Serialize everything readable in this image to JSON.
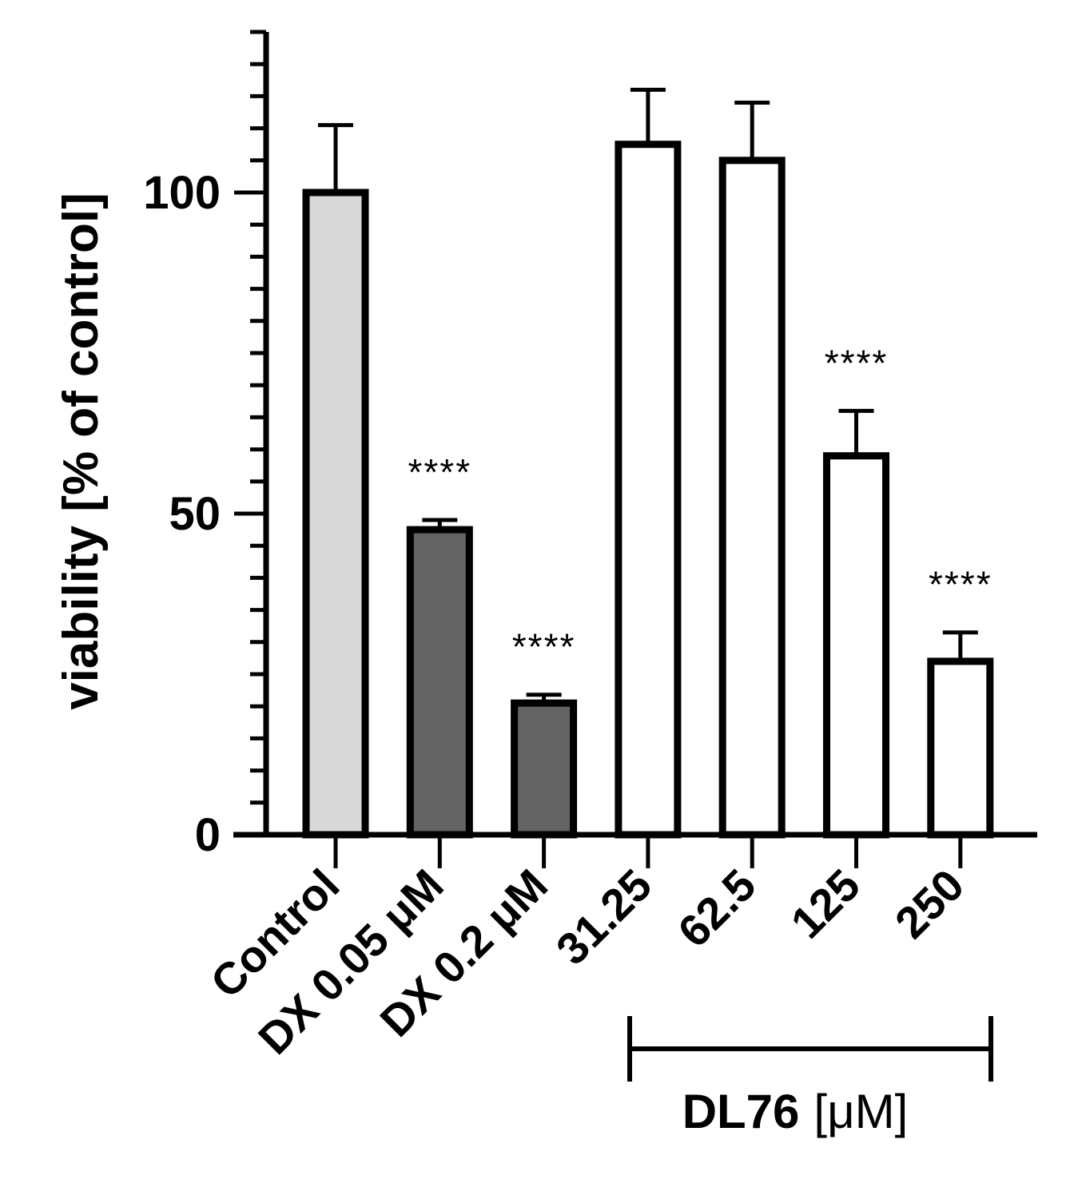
{
  "chart_data": {
    "type": "bar",
    "ylabel": "viability [% of control]",
    "ylim": [
      0,
      125
    ],
    "yticks_major": [
      0,
      50,
      100
    ],
    "yticks_minor_step": 10,
    "categories": [
      "Control",
      "DX 0.05 μM",
      "DX 0.2 μM",
      "31.25",
      "62.5",
      "125",
      "250"
    ],
    "values": [
      100,
      47.5,
      20.5,
      107.5,
      105,
      59,
      27
    ],
    "errors": [
      10.5,
      1.5,
      1.3,
      8.5,
      9,
      7,
      4.5
    ],
    "significance": [
      "",
      "****",
      "****",
      "",
      "",
      "****",
      "****"
    ],
    "bar_fills": [
      "#d9d9d9",
      "#636363",
      "#636363",
      "#ffffff",
      "#ffffff",
      "#ffffff",
      "#ffffff"
    ],
    "group": {
      "title": "DL76",
      "unit": "[μM]",
      "categories": [
        "31.25",
        "62.5",
        "125",
        "250"
      ]
    }
  }
}
